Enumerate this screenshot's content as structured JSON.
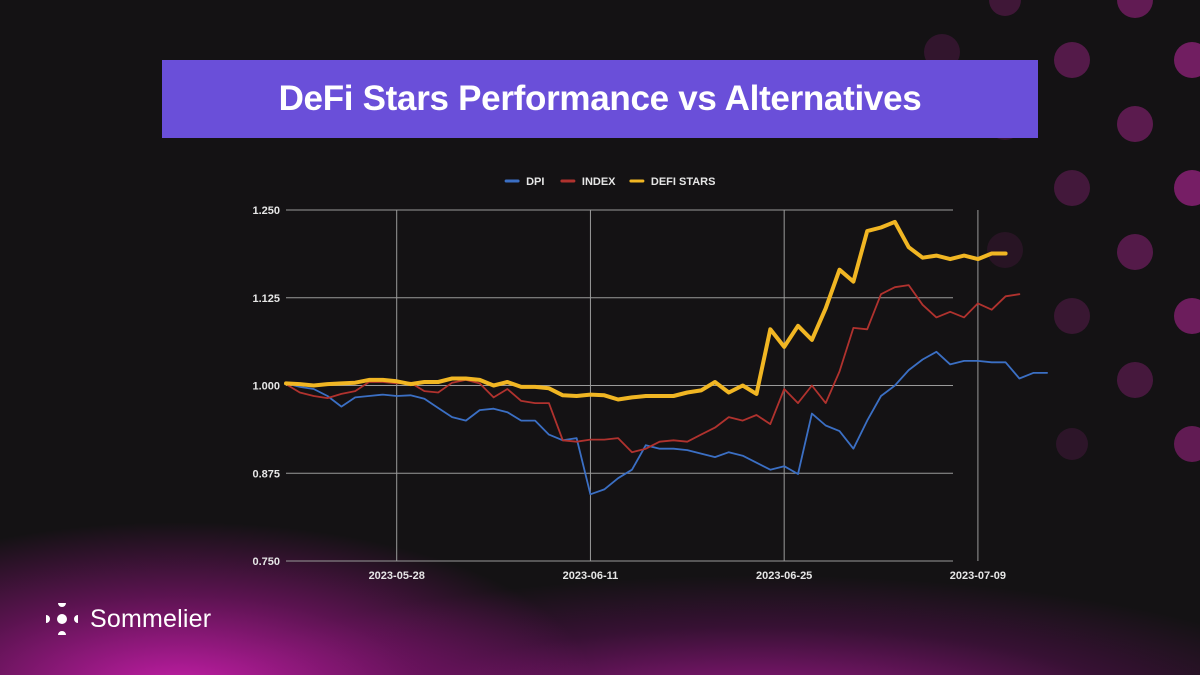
{
  "header": {
    "title": "DeFi Stars Performance vs Alternatives"
  },
  "brand": {
    "name": "Sommelier",
    "logo_icon": "sommelier-logo-icon"
  },
  "colors": {
    "banner": "#6a4fd9",
    "background": "#141214",
    "grid": "#9a9a9a",
    "accent_magenta": "#c21aa5"
  },
  "chart_data": {
    "type": "line",
    "title": "",
    "xlabel": "",
    "ylabel": "",
    "xlim": [
      "2023-05-20",
      "2023-07-11"
    ],
    "ylim": [
      0.75,
      1.25
    ],
    "y_ticks": [
      "1.250",
      "1.125",
      "1.000",
      "0.875",
      "0.750"
    ],
    "x_ticks": [
      "2023-05-28",
      "2023-06-11",
      "2023-06-25",
      "2023-07-09"
    ],
    "grid": true,
    "legend_position": "top-center",
    "series": [
      {
        "name": "DPI",
        "color": "#3b6fc4",
        "points": [
          [
            "2023-05-20",
            1.003
          ],
          [
            "2023-05-21",
            0.998
          ],
          [
            "2023-05-22",
            0.995
          ],
          [
            "2023-05-23",
            0.985
          ],
          [
            "2023-05-24",
            0.97
          ],
          [
            "2023-05-25",
            0.983
          ],
          [
            "2023-05-26",
            0.985
          ],
          [
            "2023-05-27",
            0.987
          ],
          [
            "2023-05-28",
            0.985
          ],
          [
            "2023-05-29",
            0.986
          ],
          [
            "2023-05-30",
            0.981
          ],
          [
            "2023-05-31",
            0.968
          ],
          [
            "2023-06-01",
            0.955
          ],
          [
            "2023-06-02",
            0.95
          ],
          [
            "2023-06-03",
            0.965
          ],
          [
            "2023-06-04",
            0.967
          ],
          [
            "2023-06-05",
            0.962
          ],
          [
            "2023-06-06",
            0.95
          ],
          [
            "2023-06-07",
            0.95
          ],
          [
            "2023-06-08",
            0.93
          ],
          [
            "2023-06-09",
            0.922
          ],
          [
            "2023-06-10",
            0.925
          ],
          [
            "2023-06-11",
            0.845
          ],
          [
            "2023-06-12",
            0.852
          ],
          [
            "2023-06-13",
            0.868
          ],
          [
            "2023-06-14",
            0.88
          ],
          [
            "2023-06-15",
            0.915
          ],
          [
            "2023-06-16",
            0.91
          ],
          [
            "2023-06-17",
            0.91
          ],
          [
            "2023-06-18",
            0.908
          ],
          [
            "2023-06-19",
            0.903
          ],
          [
            "2023-06-20",
            0.898
          ],
          [
            "2023-06-21",
            0.905
          ],
          [
            "2023-06-22",
            0.9
          ],
          [
            "2023-06-23",
            0.89
          ],
          [
            "2023-06-24",
            0.88
          ],
          [
            "2023-06-25",
            0.885
          ],
          [
            "2023-06-26",
            0.874
          ],
          [
            "2023-06-27",
            0.96
          ],
          [
            "2023-06-28",
            0.943
          ],
          [
            "2023-06-29",
            0.935
          ],
          [
            "2023-06-30",
            0.91
          ],
          [
            "2023-07-01",
            0.95
          ],
          [
            "2023-07-02",
            0.985
          ],
          [
            "2023-07-03",
            1.0
          ],
          [
            "2023-07-04",
            1.022
          ],
          [
            "2023-07-05",
            1.037
          ],
          [
            "2023-07-06",
            1.048
          ],
          [
            "2023-07-07",
            1.03
          ],
          [
            "2023-07-08",
            1.035
          ],
          [
            "2023-07-09",
            1.035
          ],
          [
            "2023-07-10",
            1.033
          ],
          [
            "2023-07-11",
            1.033
          ],
          [
            "2023-07-12",
            1.01
          ],
          [
            "2023-07-13",
            1.018
          ],
          [
            "2023-07-14",
            1.018
          ]
        ]
      },
      {
        "name": "INDEX",
        "color": "#b0322e",
        "points": [
          [
            "2023-05-20",
            1.002
          ],
          [
            "2023-05-21",
            0.99
          ],
          [
            "2023-05-22",
            0.985
          ],
          [
            "2023-05-23",
            0.982
          ],
          [
            "2023-05-24",
            0.988
          ],
          [
            "2023-05-25",
            0.992
          ],
          [
            "2023-05-26",
            1.005
          ],
          [
            "2023-05-27",
            1.005
          ],
          [
            "2023-05-28",
            1.003
          ],
          [
            "2023-05-29",
            1.004
          ],
          [
            "2023-05-30",
            0.992
          ],
          [
            "2023-05-31",
            0.99
          ],
          [
            "2023-06-01",
            1.004
          ],
          [
            "2023-06-02",
            1.008
          ],
          [
            "2023-06-03",
            1.003
          ],
          [
            "2023-06-04",
            0.983
          ],
          [
            "2023-06-05",
            0.995
          ],
          [
            "2023-06-06",
            0.978
          ],
          [
            "2023-06-07",
            0.975
          ],
          [
            "2023-06-08",
            0.975
          ],
          [
            "2023-06-09",
            0.922
          ],
          [
            "2023-06-10",
            0.92
          ],
          [
            "2023-06-11",
            0.923
          ],
          [
            "2023-06-12",
            0.923
          ],
          [
            "2023-06-13",
            0.925
          ],
          [
            "2023-06-14",
            0.905
          ],
          [
            "2023-06-15",
            0.91
          ],
          [
            "2023-06-16",
            0.92
          ],
          [
            "2023-06-17",
            0.922
          ],
          [
            "2023-06-18",
            0.92
          ],
          [
            "2023-06-19",
            0.93
          ],
          [
            "2023-06-20",
            0.94
          ],
          [
            "2023-06-21",
            0.955
          ],
          [
            "2023-06-22",
            0.95
          ],
          [
            "2023-06-23",
            0.958
          ],
          [
            "2023-06-24",
            0.945
          ],
          [
            "2023-06-25",
            0.995
          ],
          [
            "2023-06-26",
            0.975
          ],
          [
            "2023-06-27",
            1.0
          ],
          [
            "2023-06-28",
            0.975
          ],
          [
            "2023-06-29",
            1.02
          ],
          [
            "2023-06-30",
            1.082
          ],
          [
            "2023-07-01",
            1.08
          ],
          [
            "2023-07-02",
            1.13
          ],
          [
            "2023-07-03",
            1.14
          ],
          [
            "2023-07-04",
            1.143
          ],
          [
            "2023-07-05",
            1.115
          ],
          [
            "2023-07-06",
            1.097
          ],
          [
            "2023-07-07",
            1.105
          ],
          [
            "2023-07-08",
            1.097
          ],
          [
            "2023-07-09",
            1.117
          ],
          [
            "2023-07-10",
            1.108
          ],
          [
            "2023-07-11",
            1.127
          ],
          [
            "2023-07-12",
            1.13
          ]
        ]
      },
      {
        "name": "DEFI STARS",
        "color": "#f1b623",
        "points": [
          [
            "2023-05-20",
            1.003
          ],
          [
            "2023-05-21",
            1.002
          ],
          [
            "2023-05-22",
            1.0
          ],
          [
            "2023-05-23",
            1.002
          ],
          [
            "2023-05-24",
            1.003
          ],
          [
            "2023-05-25",
            1.004
          ],
          [
            "2023-05-26",
            1.008
          ],
          [
            "2023-05-27",
            1.008
          ],
          [
            "2023-05-28",
            1.006
          ],
          [
            "2023-05-29",
            1.002
          ],
          [
            "2023-05-30",
            1.005
          ],
          [
            "2023-05-31",
            1.005
          ],
          [
            "2023-06-01",
            1.01
          ],
          [
            "2023-06-02",
            1.01
          ],
          [
            "2023-06-03",
            1.008
          ],
          [
            "2023-06-04",
            1.0
          ],
          [
            "2023-06-05",
            1.005
          ],
          [
            "2023-06-06",
            0.998
          ],
          [
            "2023-06-07",
            0.998
          ],
          [
            "2023-06-08",
            0.996
          ],
          [
            "2023-06-09",
            0.986
          ],
          [
            "2023-06-10",
            0.985
          ],
          [
            "2023-06-11",
            0.987
          ],
          [
            "2023-06-12",
            0.986
          ],
          [
            "2023-06-13",
            0.98
          ],
          [
            "2023-06-14",
            0.983
          ],
          [
            "2023-06-15",
            0.985
          ],
          [
            "2023-06-16",
            0.985
          ],
          [
            "2023-06-17",
            0.985
          ],
          [
            "2023-06-18",
            0.99
          ],
          [
            "2023-06-19",
            0.993
          ],
          [
            "2023-06-20",
            1.005
          ],
          [
            "2023-06-21",
            0.99
          ],
          [
            "2023-06-22",
            1.0
          ],
          [
            "2023-06-23",
            0.988
          ],
          [
            "2023-06-24",
            1.08
          ],
          [
            "2023-06-25",
            1.055
          ],
          [
            "2023-06-26",
            1.085
          ],
          [
            "2023-06-27",
            1.065
          ],
          [
            "2023-06-28",
            1.11
          ],
          [
            "2023-06-29",
            1.165
          ],
          [
            "2023-06-30",
            1.148
          ],
          [
            "2023-07-01",
            1.22
          ],
          [
            "2023-07-02",
            1.225
          ],
          [
            "2023-07-03",
            1.233
          ],
          [
            "2023-07-04",
            1.197
          ],
          [
            "2023-07-05",
            1.182
          ],
          [
            "2023-07-06",
            1.185
          ],
          [
            "2023-07-07",
            1.18
          ],
          [
            "2023-07-08",
            1.185
          ],
          [
            "2023-07-09",
            1.18
          ],
          [
            "2023-07-10",
            1.188
          ],
          [
            "2023-07-11",
            1.188
          ]
        ]
      }
    ]
  }
}
